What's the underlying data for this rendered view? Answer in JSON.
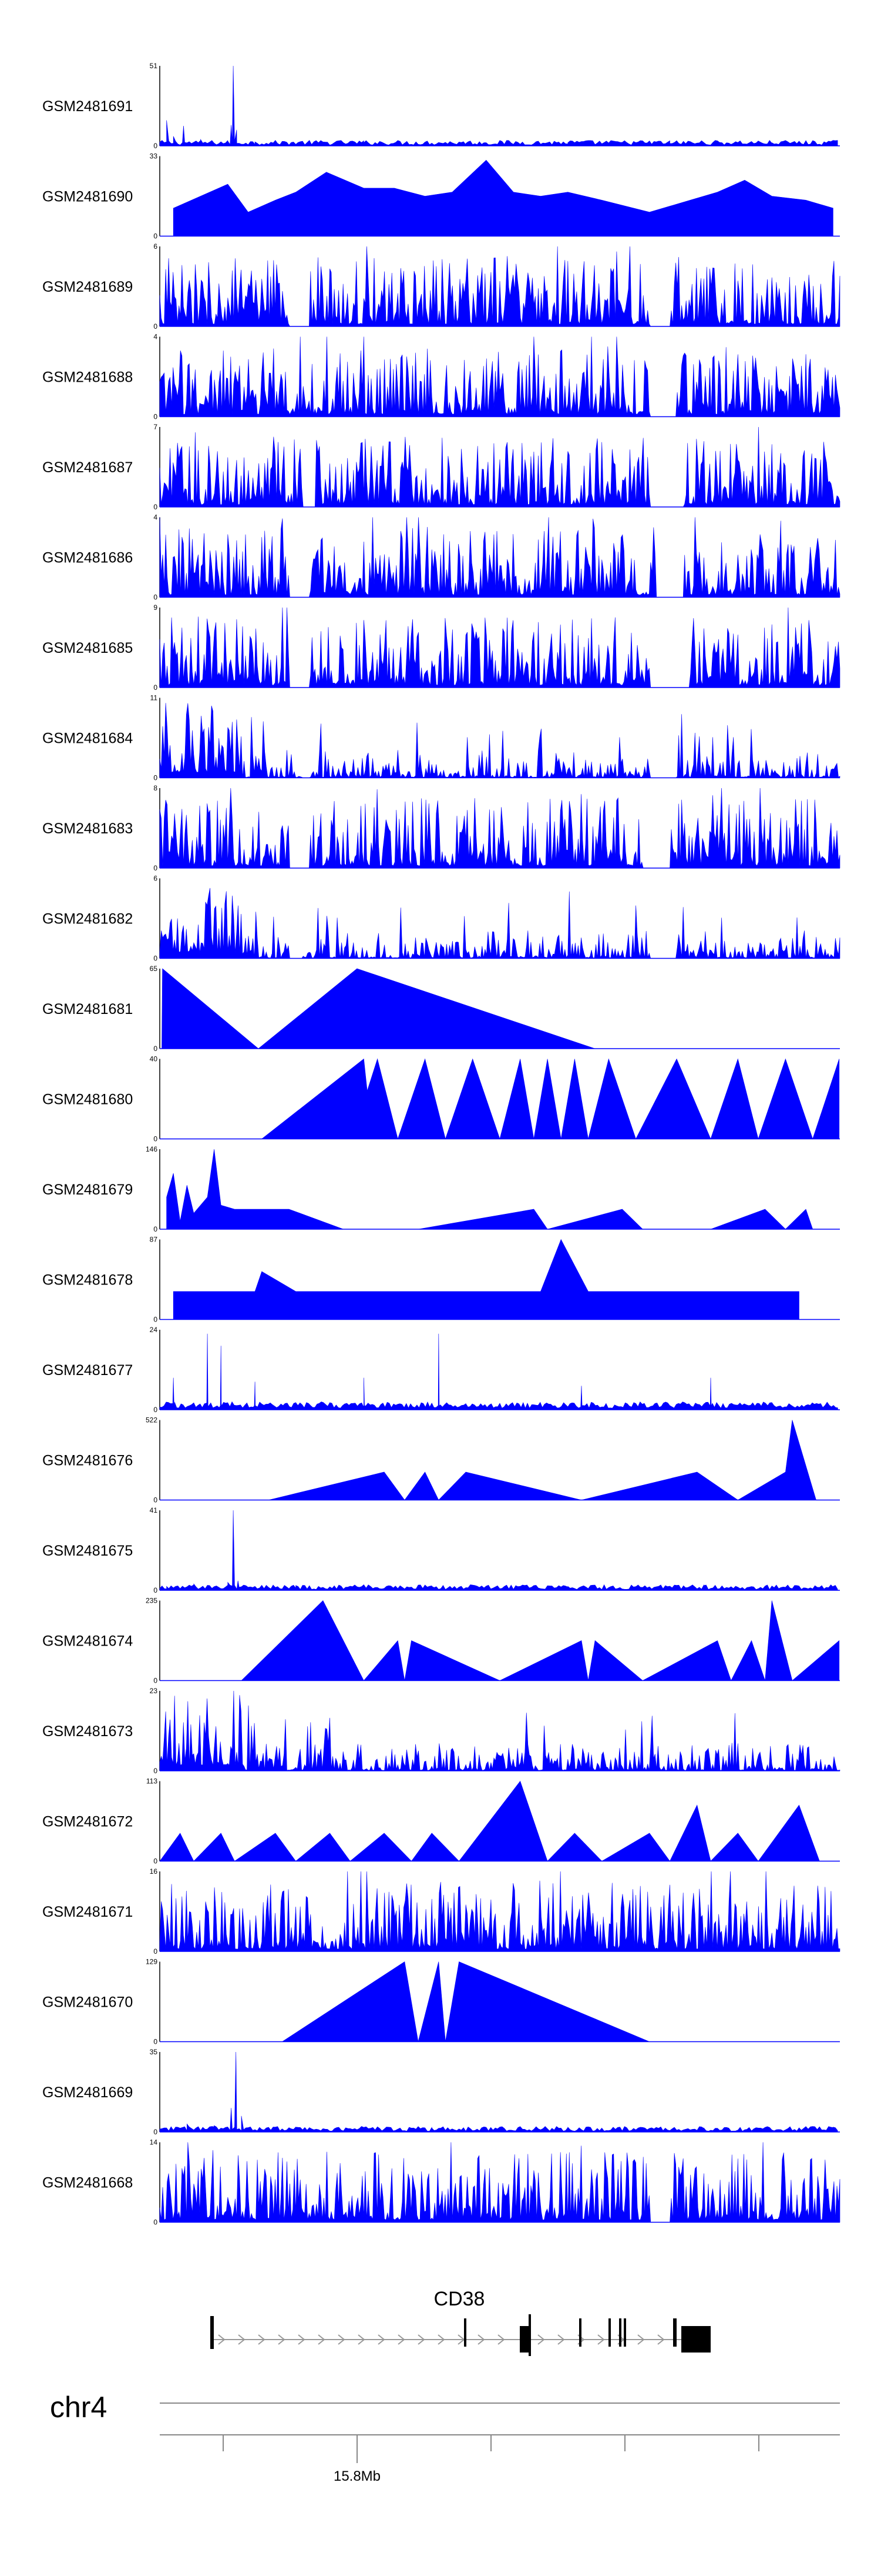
{
  "chart_data": {
    "type": "area",
    "title": "",
    "xlabel": "",
    "ylabel": "",
    "colors": {
      "signal": "#0000ff",
      "axis": "#000000",
      "gene": "#000000",
      "chromosome_line": "#888888",
      "intron_arrow": "#999999"
    },
    "gene": {
      "name": "CD38"
    },
    "chromosome": {
      "name": "chr4",
      "position_label": "15.8Mb"
    },
    "tracks": [
      {
        "name": "GSM2481691",
        "ymax": 51,
        "ymin_label": 0,
        "pattern": "noise-spike",
        "points": [
          [
            0.01,
            0.32
          ],
          [
            0.02,
            0.12
          ],
          [
            0.035,
            0.25
          ],
          [
            0.06,
            0.08
          ],
          [
            0.1,
            0.06
          ],
          [
            0.105,
            0.26
          ],
          [
            0.108,
            1.0
          ],
          [
            0.113,
            0.2
          ],
          [
            0.14,
            0.05
          ],
          [
            0.3,
            0.04
          ],
          [
            0.45,
            0.03
          ],
          [
            0.6,
            0.04
          ],
          [
            0.75,
            0.03
          ],
          [
            0.9,
            0.04
          ]
        ]
      },
      {
        "name": "GSM2481690",
        "ymax": 33,
        "ymin_label": 0,
        "pattern": "tents",
        "points": [
          [
            0.02,
            0.35
          ],
          [
            0.06,
            0.5
          ],
          [
            0.1,
            0.65
          ],
          [
            0.13,
            0.3
          ],
          [
            0.17,
            0.45
          ],
          [
            0.2,
            0.55
          ],
          [
            0.245,
            0.8
          ],
          [
            0.3,
            0.6
          ],
          [
            0.345,
            0.6
          ],
          [
            0.39,
            0.5
          ],
          [
            0.43,
            0.55
          ],
          [
            0.48,
            0.95
          ],
          [
            0.52,
            0.55
          ],
          [
            0.56,
            0.5
          ],
          [
            0.6,
            0.55
          ],
          [
            0.65,
            0.45
          ],
          [
            0.72,
            0.3
          ],
          [
            0.78,
            0.45
          ],
          [
            0.82,
            0.55
          ],
          [
            0.86,
            0.7
          ],
          [
            0.9,
            0.5
          ],
          [
            0.95,
            0.45
          ],
          [
            0.99,
            0.35
          ]
        ]
      },
      {
        "name": "GSM2481689",
        "ymax": 6,
        "ymin_label": 0,
        "pattern": "dense",
        "gaps": [
          [
            0.19,
            0.22
          ],
          [
            0.72,
            0.75
          ]
        ]
      },
      {
        "name": "GSM2481688",
        "ymax": 4,
        "ymin_label": 0,
        "pattern": "dense",
        "gaps": [
          [
            0.72,
            0.76
          ]
        ]
      },
      {
        "name": "GSM2481687",
        "ymax": 7,
        "ymin_label": 0,
        "pattern": "dense",
        "gaps": [
          [
            0.21,
            0.23
          ],
          [
            0.72,
            0.77
          ]
        ]
      },
      {
        "name": "GSM2481686",
        "ymax": 4,
        "ymin_label": 0,
        "pattern": "dense",
        "gaps": [
          [
            0.19,
            0.22
          ],
          [
            0.73,
            0.77
          ]
        ]
      },
      {
        "name": "GSM2481685",
        "ymax": 9,
        "ymin_label": 0,
        "pattern": "dense",
        "gaps": [
          [
            0.19,
            0.22
          ],
          [
            0.72,
            0.78
          ]
        ]
      },
      {
        "name": "GSM2481684",
        "ymax": 11,
        "ymin_label": 0,
        "pattern": "decay-dense",
        "gaps": [
          [
            0.21,
            0.22
          ],
          [
            0.72,
            0.76
          ]
        ]
      },
      {
        "name": "GSM2481683",
        "ymax": 8,
        "ymin_label": 0,
        "pattern": "dense",
        "gaps": [
          [
            0.19,
            0.22
          ],
          [
            0.71,
            0.75
          ]
        ]
      },
      {
        "name": "GSM2481682",
        "ymax": 6,
        "ymin_label": 0,
        "pattern": "decay-dense",
        "gaps": [
          [
            0.19,
            0.21
          ],
          [
            0.72,
            0.76
          ]
        ]
      },
      {
        "name": "GSM2481681",
        "ymax": 65,
        "ymin_label": 0,
        "pattern": "tents",
        "points": [
          [
            0.003,
            0.0
          ],
          [
            0.004,
            1.0
          ],
          [
            0.145,
            0.0
          ],
          [
            0.29,
            1.0
          ],
          [
            0.64,
            0.0
          ]
        ]
      },
      {
        "name": "GSM2481680",
        "ymax": 40,
        "ymin_label": 0,
        "pattern": "tents",
        "points": [
          [
            0.15,
            0.0
          ],
          [
            0.3,
            1.0
          ],
          [
            0.305,
            0.6
          ],
          [
            0.32,
            1.0
          ],
          [
            0.35,
            0.0
          ],
          [
            0.39,
            1.0
          ],
          [
            0.42,
            0.0
          ],
          [
            0.46,
            1.0
          ],
          [
            0.5,
            0.0
          ],
          [
            0.53,
            1.0
          ],
          [
            0.55,
            0.0
          ],
          [
            0.57,
            1.0
          ],
          [
            0.59,
            0.0
          ],
          [
            0.61,
            1.0
          ],
          [
            0.63,
            0.0
          ],
          [
            0.66,
            1.0
          ],
          [
            0.7,
            0.0
          ],
          [
            0.76,
            1.0
          ],
          [
            0.81,
            0.0
          ],
          [
            0.85,
            1.0
          ],
          [
            0.88,
            0.0
          ],
          [
            0.92,
            1.0
          ],
          [
            0.96,
            0.0
          ],
          [
            0.999,
            1.0
          ]
        ]
      },
      {
        "name": "GSM2481679",
        "ymax": 146,
        "ymin_label": 0,
        "pattern": "tents",
        "points": [
          [
            0.01,
            0.4
          ],
          [
            0.02,
            0.7
          ],
          [
            0.03,
            0.1
          ],
          [
            0.04,
            0.55
          ],
          [
            0.05,
            0.2
          ],
          [
            0.07,
            0.4
          ],
          [
            0.08,
            1.0
          ],
          [
            0.09,
            0.3
          ],
          [
            0.11,
            0.25
          ],
          [
            0.19,
            0.25
          ],
          [
            0.27,
            0.0
          ],
          [
            0.38,
            0.0
          ],
          [
            0.55,
            0.25
          ],
          [
            0.57,
            0.0
          ],
          [
            0.68,
            0.25
          ],
          [
            0.71,
            0.0
          ],
          [
            0.81,
            0.0
          ],
          [
            0.89,
            0.25
          ],
          [
            0.92,
            0.0
          ],
          [
            0.95,
            0.25
          ],
          [
            0.96,
            0.0
          ]
        ]
      },
      {
        "name": "GSM2481678",
        "ymax": 87,
        "ymin_label": 0,
        "pattern": "tents",
        "points": [
          [
            0.02,
            0.35
          ],
          [
            0.06,
            0.35
          ],
          [
            0.1,
            0.35
          ],
          [
            0.14,
            0.35
          ],
          [
            0.15,
            0.6
          ],
          [
            0.2,
            0.35
          ],
          [
            0.26,
            0.35
          ],
          [
            0.32,
            0.35
          ],
          [
            0.38,
            0.35
          ],
          [
            0.42,
            0.35
          ],
          [
            0.45,
            0.35
          ],
          [
            0.48,
            0.35
          ],
          [
            0.51,
            0.35
          ],
          [
            0.54,
            0.35
          ],
          [
            0.56,
            0.35
          ],
          [
            0.59,
            1.0
          ],
          [
            0.63,
            0.35
          ],
          [
            0.69,
            0.35
          ],
          [
            0.75,
            0.35
          ],
          [
            0.79,
            0.35
          ],
          [
            0.83,
            0.35
          ],
          [
            0.88,
            0.35
          ],
          [
            0.94,
            0.35
          ]
        ]
      },
      {
        "name": "GSM2481677",
        "ymax": 24,
        "ymin_label": 0,
        "pattern": "sparse-spikes",
        "spikes": [
          [
            0.02,
            0.4
          ],
          [
            0.07,
            0.95
          ],
          [
            0.09,
            0.8
          ],
          [
            0.14,
            0.35
          ],
          [
            0.3,
            0.4
          ],
          [
            0.41,
            0.95
          ],
          [
            0.62,
            0.3
          ],
          [
            0.81,
            0.4
          ]
        ]
      },
      {
        "name": "GSM2481676",
        "ymax": 522,
        "ymin_label": 0,
        "pattern": "tents",
        "points": [
          [
            0.16,
            0.0
          ],
          [
            0.33,
            0.35
          ],
          [
            0.36,
            0.0
          ],
          [
            0.39,
            0.35
          ],
          [
            0.41,
            0.0
          ],
          [
            0.45,
            0.35
          ],
          [
            0.62,
            0.0
          ],
          [
            0.79,
            0.35
          ],
          [
            0.85,
            0.0
          ],
          [
            0.92,
            0.35
          ],
          [
            0.93,
            1.0
          ],
          [
            0.965,
            0.0
          ]
        ]
      },
      {
        "name": "GSM2481675",
        "ymax": 41,
        "ymin_label": 0,
        "pattern": "noise-spike",
        "points": [
          [
            0.01,
            0.05
          ],
          [
            0.05,
            0.08
          ],
          [
            0.1,
            0.1
          ],
          [
            0.108,
            1.0
          ],
          [
            0.115,
            0.12
          ],
          [
            0.2,
            0.06
          ],
          [
            0.4,
            0.05
          ],
          [
            0.6,
            0.05
          ],
          [
            0.8,
            0.06
          ],
          [
            0.99,
            0.05
          ]
        ]
      },
      {
        "name": "GSM2481674",
        "ymax": 235,
        "ymin_label": 0,
        "pattern": "tents",
        "points": [
          [
            0.12,
            0.0
          ],
          [
            0.24,
            1.0
          ],
          [
            0.3,
            0.0
          ],
          [
            0.35,
            0.5
          ],
          [
            0.36,
            0.0
          ],
          [
            0.37,
            0.5
          ],
          [
            0.5,
            0.0
          ],
          [
            0.62,
            0.5
          ],
          [
            0.63,
            0.0
          ],
          [
            0.64,
            0.5
          ],
          [
            0.71,
            0.0
          ],
          [
            0.82,
            0.5
          ],
          [
            0.84,
            0.0
          ],
          [
            0.87,
            0.5
          ],
          [
            0.89,
            0.0
          ],
          [
            0.9,
            1.0
          ],
          [
            0.93,
            0.0
          ],
          [
            0.999,
            0.5
          ]
        ]
      },
      {
        "name": "GSM2481673",
        "ymax": 23,
        "ymin_label": 0,
        "pattern": "decay-dense",
        "gaps": []
      },
      {
        "name": "GSM2481672",
        "ymax": 113,
        "ymin_label": 0,
        "pattern": "tents",
        "points": [
          [
            0.0,
            0.0
          ],
          [
            0.03,
            0.35
          ],
          [
            0.05,
            0.0
          ],
          [
            0.09,
            0.35
          ],
          [
            0.11,
            0.0
          ],
          [
            0.17,
            0.35
          ],
          [
            0.2,
            0.0
          ],
          [
            0.25,
            0.35
          ],
          [
            0.28,
            0.0
          ],
          [
            0.33,
            0.35
          ],
          [
            0.37,
            0.0
          ],
          [
            0.4,
            0.35
          ],
          [
            0.44,
            0.0
          ],
          [
            0.53,
            1.0
          ],
          [
            0.57,
            0.0
          ],
          [
            0.61,
            0.35
          ],
          [
            0.65,
            0.0
          ],
          [
            0.72,
            0.35
          ],
          [
            0.75,
            0.0
          ],
          [
            0.79,
            0.7
          ],
          [
            0.81,
            0.0
          ],
          [
            0.85,
            0.35
          ],
          [
            0.88,
            0.0
          ],
          [
            0.94,
            0.7
          ],
          [
            0.97,
            0.0
          ]
        ]
      },
      {
        "name": "GSM2481671",
        "ymax": 16,
        "ymin_label": 0,
        "pattern": "dense",
        "gaps": []
      },
      {
        "name": "GSM2481670",
        "ymax": 129,
        "ymin_label": 0,
        "pattern": "tents",
        "points": [
          [
            0.18,
            0.0
          ],
          [
            0.36,
            1.0
          ],
          [
            0.38,
            0.0
          ],
          [
            0.41,
            1.0
          ],
          [
            0.42,
            0.0
          ],
          [
            0.44,
            1.0
          ],
          [
            0.72,
            0.0
          ]
        ]
      },
      {
        "name": "GSM2481669",
        "ymax": 35,
        "ymin_label": 0,
        "pattern": "noise-spike",
        "points": [
          [
            0.01,
            0.05
          ],
          [
            0.04,
            0.1
          ],
          [
            0.08,
            0.08
          ],
          [
            0.105,
            0.3
          ],
          [
            0.112,
            1.0
          ],
          [
            0.12,
            0.2
          ],
          [
            0.2,
            0.06
          ],
          [
            0.4,
            0.05
          ],
          [
            0.6,
            0.06
          ],
          [
            0.8,
            0.05
          ],
          [
            0.99,
            0.06
          ]
        ]
      },
      {
        "name": "GSM2481668",
        "ymax": 14,
        "ymin_label": 0,
        "pattern": "dense",
        "gaps": [
          [
            0.72,
            0.75
          ]
        ]
      }
    ]
  }
}
